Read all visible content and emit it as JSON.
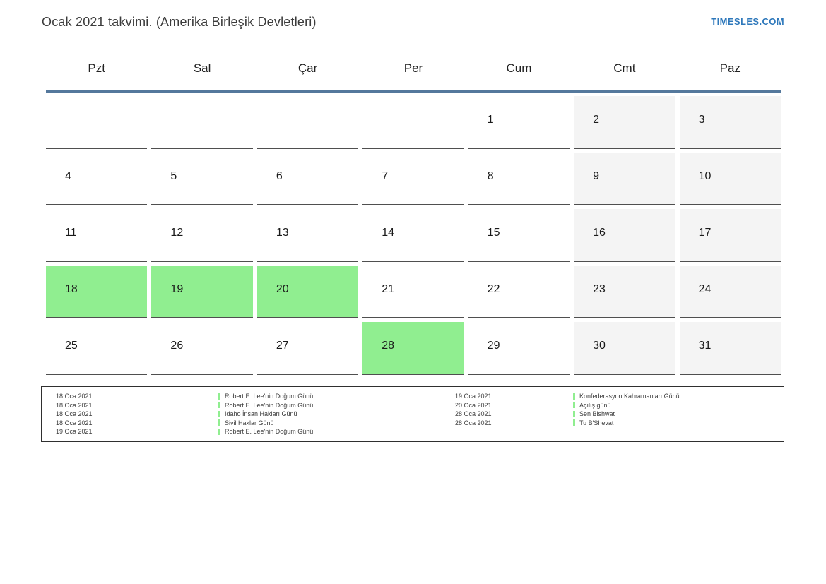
{
  "header": {
    "title": "Ocak 2021 takvimi. (Amerika Birleşik Devletleri)",
    "brand": "TIMESLES.COM"
  },
  "calendar": {
    "day_headers": [
      "Pzt",
      "Sal",
      "Çar",
      "Per",
      "Cum",
      "Cmt",
      "Paz"
    ],
    "weeks": [
      [
        {
          "day": "",
          "type": "empty"
        },
        {
          "day": "",
          "type": "empty"
        },
        {
          "day": "",
          "type": "empty"
        },
        {
          "day": "",
          "type": "empty"
        },
        {
          "day": "1",
          "type": "day"
        },
        {
          "day": "2",
          "type": "weekend"
        },
        {
          "day": "3",
          "type": "weekend"
        }
      ],
      [
        {
          "day": "4",
          "type": "day"
        },
        {
          "day": "5",
          "type": "day"
        },
        {
          "day": "6",
          "type": "day"
        },
        {
          "day": "7",
          "type": "day"
        },
        {
          "day": "8",
          "type": "day"
        },
        {
          "day": "9",
          "type": "weekend"
        },
        {
          "day": "10",
          "type": "weekend"
        }
      ],
      [
        {
          "day": "11",
          "type": "day"
        },
        {
          "day": "12",
          "type": "day"
        },
        {
          "day": "13",
          "type": "day"
        },
        {
          "day": "14",
          "type": "day"
        },
        {
          "day": "15",
          "type": "day"
        },
        {
          "day": "16",
          "type": "weekend"
        },
        {
          "day": "17",
          "type": "weekend"
        }
      ],
      [
        {
          "day": "18",
          "type": "holiday"
        },
        {
          "day": "19",
          "type": "holiday"
        },
        {
          "day": "20",
          "type": "holiday"
        },
        {
          "day": "21",
          "type": "day"
        },
        {
          "day": "22",
          "type": "day"
        },
        {
          "day": "23",
          "type": "weekend"
        },
        {
          "day": "24",
          "type": "weekend"
        }
      ],
      [
        {
          "day": "25",
          "type": "day"
        },
        {
          "day": "26",
          "type": "day"
        },
        {
          "day": "27",
          "type": "day"
        },
        {
          "day": "28",
          "type": "holiday"
        },
        {
          "day": "29",
          "type": "day"
        },
        {
          "day": "30",
          "type": "weekend"
        },
        {
          "day": "31",
          "type": "weekend"
        }
      ]
    ]
  },
  "legend": {
    "left_column": [
      {
        "date": "18 Oca 2021",
        "name": "Robert E. Lee'nin Doğum Günü"
      },
      {
        "date": "18 Oca 2021",
        "name": "Robert E. Lee'nin Doğum Günü"
      },
      {
        "date": "18 Oca 2021",
        "name": "Idaho İnsan Hakları Günü"
      },
      {
        "date": "18 Oca 2021",
        "name": "Sivil Haklar Günü"
      },
      {
        "date": "19 Oca 2021",
        "name": "Robert E. Lee'nin Doğum Günü"
      }
    ],
    "right_column": [
      {
        "date": "19 Oca 2021",
        "name": "Konfederasyon Kahramanları Günü"
      },
      {
        "date": "20 Oca 2021",
        "name": "Açılış günü"
      },
      {
        "date": "28 Oca 2021",
        "name": "Sen Bishwat"
      },
      {
        "date": "28 Oca 2021",
        "name": "Tu B'Shevat"
      }
    ]
  },
  "colors": {
    "holiday_highlight": "#90ee90",
    "weekend_background": "#f4f4f4",
    "header_rule": "#54789c",
    "brand_blue": "#2e78bb",
    "cell_border": "#4f4f4f"
  }
}
